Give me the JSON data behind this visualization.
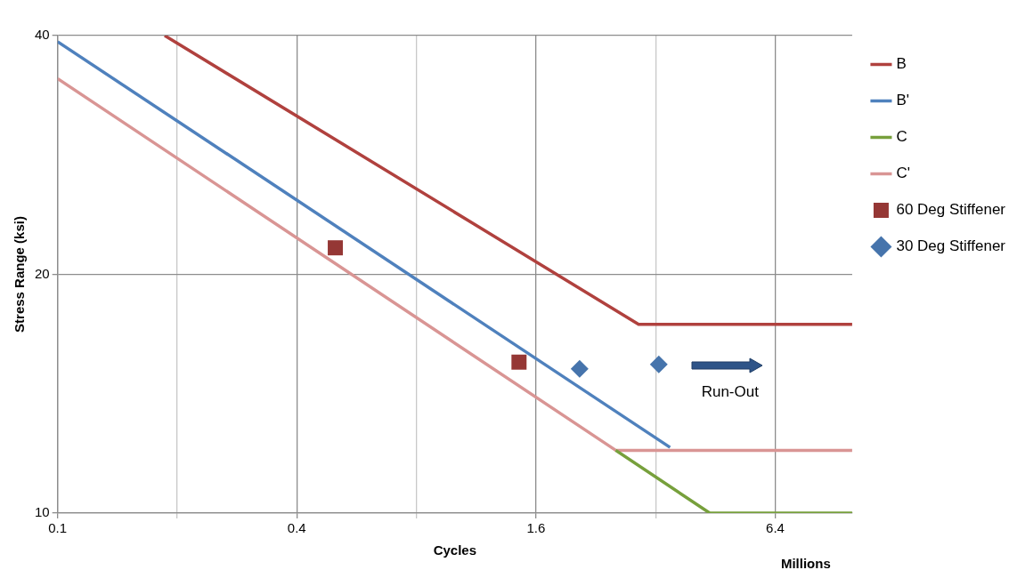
{
  "chart_data": {
    "type": "line",
    "xlabel": "Cycles",
    "ylabel": "Stress Range (ksi)",
    "log": "xy",
    "grid": true,
    "legend": "top right",
    "xlim": [
      0.1,
      10
    ],
    "xticks": [
      0.1,
      {
        "value": 0.2,
        "label": null
      },
      0.4,
      {
        "value": 0.8,
        "label": null
      },
      1.6,
      {
        "value": 3.2,
        "label": null
      },
      6.4
    ],
    "ylim": [
      10,
      40
    ],
    "yticks": [
      10,
      20,
      40
    ],
    "series": [
      {
        "name": "B",
        "color": "#b0413e",
        "x": [
          0.186,
          2.9,
          10
        ],
        "values": [
          40,
          17.3,
          17.3
        ],
        "marker": "none"
      },
      {
        "name": "B'",
        "color": "#4f81bd",
        "x": [
          0.1,
          3.48
        ],
        "values": [
          39.3,
          12.1
        ],
        "marker": "none"
      },
      {
        "name": "C",
        "color": "#77a03c",
        "x": [
          2.54,
          4.38,
          10
        ],
        "values": [
          12,
          10,
          10
        ],
        "marker": "none"
      },
      {
        "name": "C'",
        "color": "#d99594",
        "x": [
          0.1,
          2.54,
          10
        ],
        "values": [
          35.3,
          12,
          12
        ],
        "marker": "none"
      },
      {
        "name": "60 Deg Stiffener",
        "type": "scatter",
        "color": "#953735",
        "x": [
          0.5,
          1.45
        ],
        "values": [
          21.6,
          15.5
        ],
        "marker": "square"
      },
      {
        "name": "30 Deg Stiffener",
        "type": "scatter",
        "color": "#4674ac",
        "x": [
          2.06,
          3.26
        ],
        "values": [
          15.2,
          15.4
        ],
        "marker": "diamond"
      }
    ],
    "annotations": [
      "Run-Out",
      "Millions"
    ]
  }
}
